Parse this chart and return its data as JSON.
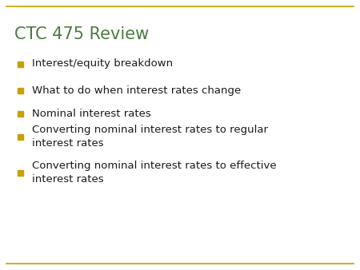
{
  "title": "CTC 475 Review",
  "title_color": "#4a7c3f",
  "title_fontsize": 15,
  "bullet_color": "#c8a000",
  "bullet_text_color": "#1a1a1a",
  "bullet_fontsize": 9.5,
  "background_color": "#ffffff",
  "border_color": "#c8a000",
  "bullets": [
    "Interest/equity breakdown",
    "What to do when interest rates change",
    "Nominal interest rates",
    "Converting nominal interest rates to regular\ninterest rates",
    "Converting nominal interest rates to effective\ninterest rates"
  ]
}
